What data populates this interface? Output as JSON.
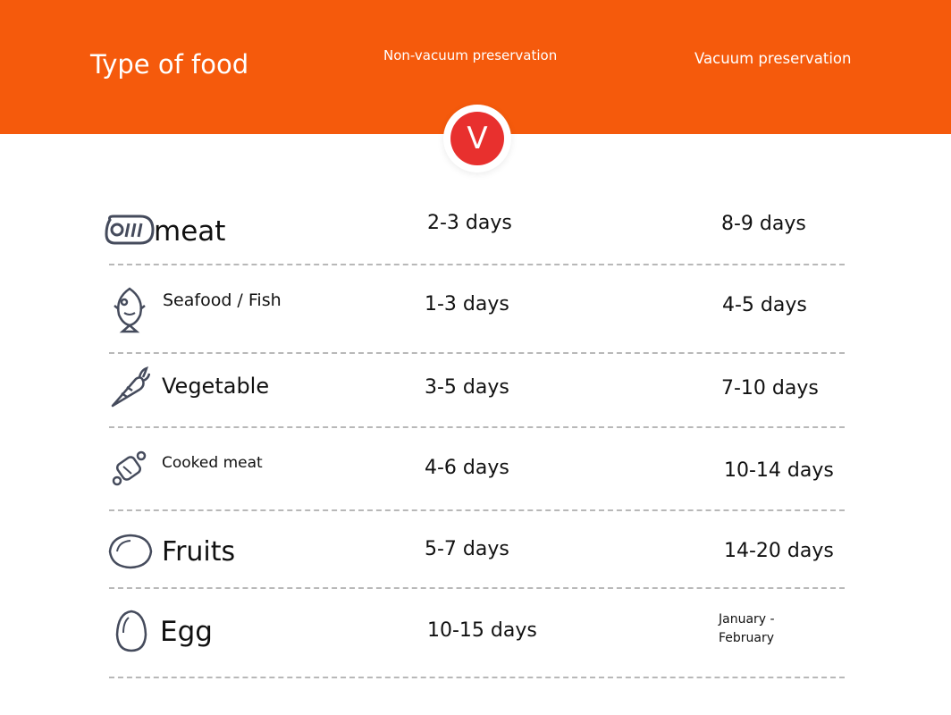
{
  "header": {
    "type_of_food": "Type of food",
    "non_vacuum": "Non-vacuum preservation",
    "vacuum": "Vacuum preservation",
    "badge": "V",
    "background_color": "#f55a0c",
    "badge_color": "#e8302e"
  },
  "rows": [
    {
      "food": "meat",
      "icon": "meat-icon",
      "non_vacuum": "2-3 days",
      "vacuum": "8-9 days"
    },
    {
      "food": "Seafood / Fish",
      "icon": "fish-icon",
      "non_vacuum": "1-3 days",
      "vacuum": "4-5 days"
    },
    {
      "food": "Vegetable",
      "icon": "carrot-icon",
      "non_vacuum": "3-5 days",
      "vacuum": "7-10 days"
    },
    {
      "food": "Cooked meat",
      "icon": "cooked-meat-icon",
      "non_vacuum": "4-6 days",
      "vacuum": "10-14 days"
    },
    {
      "food": "Fruits",
      "icon": "lemon-icon",
      "non_vacuum": "5-7 days",
      "vacuum": "14-20 days"
    },
    {
      "food": "Egg",
      "icon": "egg-icon",
      "non_vacuum": "10-15 days",
      "vacuum": "January - February"
    }
  ]
}
